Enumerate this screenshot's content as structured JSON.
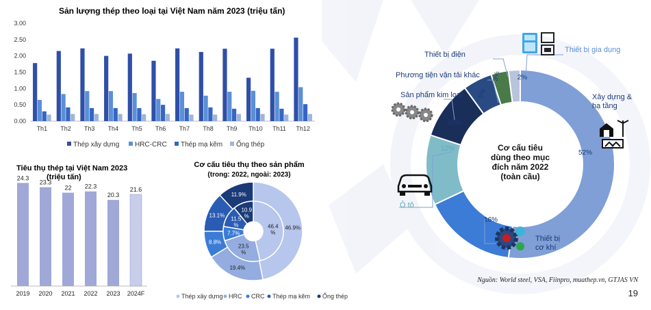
{
  "colors": {
    "thep_xay_dung": "#2f4fa8",
    "hrc_crc": "#5b8fd6",
    "thep_ma_kem": "#3566c4",
    "ong_thep": "#9fb4d8",
    "bar_consumption": "#9fa8d6",
    "forecast_bar": "#c8cde8",
    "donut_inner_dark": "#1f3f7a",
    "donut_big_light": "#7f9fd6",
    "donut_teal": "#7fbcc7",
    "donut_blue": "#3c7bd6",
    "donut_dark": "#2a4a84",
    "donut_navy": "#1a2e5a",
    "donut_green": "#4a7a4a",
    "donut_gray": "#b8c4dc"
  },
  "chart_data": [
    {
      "type": "bar",
      "title": "Sản lượng thép theo loại tại Việt Nam năm 2023 (triệu tấn)",
      "categories": [
        "Th1",
        "Th2",
        "Th3",
        "Th4",
        "Th5",
        "Th6",
        "Th7",
        "Th8",
        "Th9",
        "Th10",
        "Th11",
        "Th12"
      ],
      "series": [
        {
          "name": "Thép xây dựng",
          "values": [
            1.78,
            2.15,
            2.23,
            2.0,
            2.07,
            1.85,
            2.23,
            2.12,
            2.22,
            1.33,
            2.22,
            2.56
          ]
        },
        {
          "name": "HRC-CRC",
          "values": [
            0.65,
            0.83,
            0.92,
            0.92,
            0.86,
            0.68,
            0.9,
            0.78,
            0.9,
            0.93,
            0.9,
            1.04
          ]
        },
        {
          "name": "Thép mạ kẽm",
          "values": [
            0.3,
            0.42,
            0.4,
            0.4,
            0.4,
            0.5,
            0.4,
            0.42,
            0.38,
            0.4,
            0.38,
            0.52
          ]
        },
        {
          "name": "Ống thép",
          "values": [
            0.2,
            0.22,
            0.22,
            0.22,
            0.21,
            0.22,
            0.2,
            0.2,
            0.22,
            0.22,
            0.2,
            0.22
          ]
        }
      ],
      "yticks": [
        "0.00",
        "0.50",
        "1.00",
        "1.50",
        "2.00",
        "2.50",
        "3.00"
      ],
      "ylim": [
        0,
        3.0
      ],
      "legend_position": "bottom"
    },
    {
      "type": "bar",
      "title_lines": [
        "Tiêu thụ thép tại Việt Nam 2023",
        "(triệu tấn)"
      ],
      "categories": [
        "2019",
        "2020",
        "2021",
        "2022",
        "2023",
        "2024F"
      ],
      "values": [
        24.3,
        23.3,
        22.0,
        22.3,
        20.3,
        21.6
      ],
      "labels": [
        "24.3",
        "23.3",
        "22",
        "22.3",
        "20.3",
        "21.6"
      ],
      "ylim": [
        0,
        30
      ]
    },
    {
      "type": "pie",
      "title_lines": [
        "Cơ cấu tiêu thụ theo sản phẩm",
        "(trong: 2022, ngoài: 2023)"
      ],
      "categories": [
        "Thép xây dựng",
        "HRC",
        "CRC",
        "Thép mạ kẽm",
        "Ống thép"
      ],
      "inner_values": [
        46.4,
        23.5,
        7.7,
        11.5,
        10.9
      ],
      "inner_labels": [
        "46.4\n%",
        "23.5\n%",
        "7.7%",
        "11.5\n%",
        "10.9\n%"
      ],
      "outer_values": [
        46.9,
        19.4,
        8.8,
        13.1,
        11.9
      ],
      "outer_labels": [
        "46.9%",
        "19.4%",
        "8.8%",
        "13.1%",
        "11.9%"
      ],
      "legend_position": "bottom"
    },
    {
      "type": "pie",
      "center_lines": [
        "Cơ cấu tiêu",
        "dùng theo mục",
        "đích năm 2022",
        "(toàn cầu)"
      ],
      "categories": [
        "Xây dựng & hạ tầng",
        "Thiết bị cơ khí",
        "Ô tô",
        "Sản phẩm kim loại",
        "Phương tiện vận tải khác",
        "Thiết bị điện",
        "Thiết bị gia dụng"
      ],
      "category_lines": [
        [
          "Xây dựng &",
          "hạ tầng"
        ],
        [
          "Thiết bị",
          "cơ khí"
        ],
        [
          "Ô tô"
        ],
        [
          "Sản phẩm kim loại"
        ],
        [
          "Phương tiện vận tải khác"
        ],
        [
          "Thiết bị điện"
        ],
        [
          "Thiết bị gia dụng"
        ]
      ],
      "values": [
        52,
        16,
        12,
        10,
        5,
        3,
        2
      ],
      "labels": [
        "52%",
        "16%",
        "12%",
        "10%",
        "5%",
        "3%",
        "2%"
      ]
    }
  ],
  "footer": {
    "source": "Nguồn: World steel, VSA, Fiinpro, muathep.vn, GTJAS VN",
    "page": "19"
  }
}
